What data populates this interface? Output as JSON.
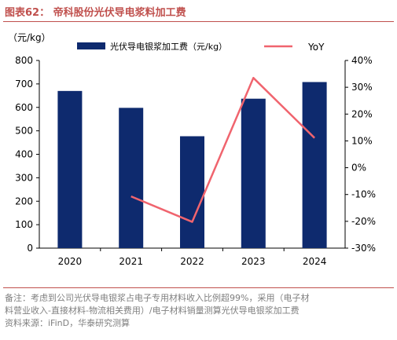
{
  "figure": {
    "title": "图表62： 帝科股份光伏导电浆料加工费",
    "note_line1": "备注：考虑到公司光伏导电银浆占电子专用材料收入比例超99%，采用（电子材",
    "note_line2": "料营业收入-直接材料-物流相关费用）/电子材料销量测算光伏导电银浆加工费",
    "source": "资料来源：iFinD，华泰研究测算"
  },
  "colors": {
    "bar": "#0e2a6e",
    "line": "#f0646e",
    "title": "#c0504d",
    "note": "#7f7f7f"
  },
  "chart_data": {
    "type": "bar",
    "categories": [
      "2020",
      "2021",
      "2022",
      "2023",
      "2024"
    ],
    "series": [
      {
        "name": "光伏导电银浆加工费（元/kg）",
        "type": "bar",
        "axis": "left",
        "values": [
          670,
          598,
          477,
          637,
          708
        ]
      },
      {
        "name": "YoY",
        "type": "line",
        "axis": "right",
        "values": [
          null,
          -10.7,
          -20.2,
          33.5,
          11.1
        ]
      }
    ],
    "ylabel": "（元/kg）",
    "ylim": [
      0,
      800
    ],
    "y_ticks": [
      0,
      100,
      200,
      300,
      400,
      500,
      600,
      700,
      800
    ],
    "y2lim": [
      -30,
      40
    ],
    "y2_ticks": [
      -30,
      -20,
      -10,
      0,
      10,
      20,
      30,
      40
    ],
    "y2_unit": "%",
    "grid": false,
    "legend": "top"
  }
}
